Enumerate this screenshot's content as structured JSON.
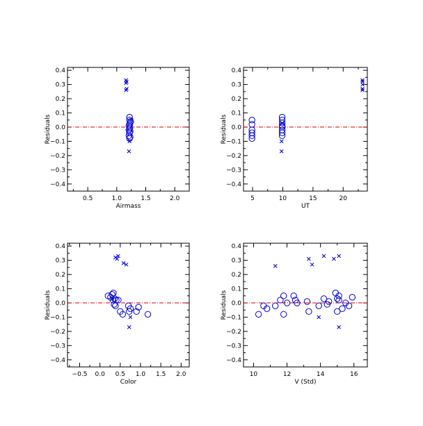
{
  "colors": {
    "marker": "#0000cc",
    "zero_line": "#dd0000",
    "axis": "#000000"
  },
  "chart_data": [
    {
      "type": "scatter",
      "xlabel": "Airmass",
      "ylabel": "Residuals",
      "xlim": [
        0.15,
        2.25
      ],
      "ylim": [
        -0.45,
        0.42
      ],
      "xticks": [
        0.5,
        1.0,
        1.5,
        2.0
      ],
      "xticklabels": [
        "0.5",
        "1.0",
        "1.5",
        "2.0"
      ],
      "yticks": [
        -0.4,
        -0.3,
        -0.2,
        -0.1,
        0.0,
        0.1,
        0.2,
        0.3,
        0.4
      ],
      "yticklabels": [
        "−0.4",
        "−0.3",
        "−0.2",
        "−0.1",
        "0.0",
        "0.1",
        "0.2",
        "0.3",
        "0.4"
      ],
      "reference_line_y": 0.0,
      "series": [
        {
          "marker": "circle",
          "points": [
            [
              1.22,
              0.07
            ],
            [
              1.22,
              0.05
            ],
            [
              1.23,
              0.03
            ],
            [
              1.22,
              0.02
            ],
            [
              1.23,
              0.0
            ],
            [
              1.22,
              -0.01
            ],
            [
              1.21,
              -0.02
            ],
            [
              1.23,
              -0.03
            ],
            [
              1.22,
              -0.04
            ],
            [
              1.21,
              -0.06
            ],
            [
              1.23,
              -0.07
            ],
            [
              1.22,
              -0.08
            ],
            [
              1.24,
              0.04
            ],
            [
              1.21,
              0.01
            ]
          ]
        },
        {
          "marker": "cross",
          "points": [
            [
              1.16,
              0.33
            ],
            [
              1.17,
              0.32
            ],
            [
              1.16,
              0.31
            ],
            [
              1.17,
              0.27
            ],
            [
              1.16,
              0.26
            ],
            [
              1.21,
              -0.17
            ],
            [
              1.22,
              -0.1
            ],
            [
              1.25,
              0.05
            ]
          ]
        }
      ]
    },
    {
      "type": "scatter",
      "xlabel": "UT",
      "ylabel": "Residuals",
      "xlim": [
        3.5,
        24
      ],
      "ylim": [
        -0.45,
        0.42
      ],
      "xticks": [
        5,
        10,
        15,
        20
      ],
      "xticklabels": [
        "5",
        "10",
        "15",
        "20"
      ],
      "yticks": [
        -0.4,
        -0.3,
        -0.2,
        -0.1,
        0.0,
        0.1,
        0.2,
        0.3,
        0.4
      ],
      "yticklabels": [
        "−0.4",
        "−0.3",
        "−0.2",
        "−0.1",
        "0.0",
        "0.1",
        "0.2",
        "0.3",
        "0.4"
      ],
      "reference_line_y": 0.0,
      "series": [
        {
          "marker": "circle",
          "points": [
            [
              4.9,
              0.05
            ],
            [
              4.9,
              0.02
            ],
            [
              4.9,
              -0.02
            ],
            [
              4.9,
              -0.04
            ],
            [
              4.9,
              -0.06
            ],
            [
              4.9,
              -0.08
            ],
            [
              9.9,
              0.07
            ],
            [
              9.9,
              0.05
            ],
            [
              9.9,
              0.03
            ],
            [
              9.9,
              0.01
            ],
            [
              9.9,
              0.0
            ],
            [
              9.9,
              -0.02
            ],
            [
              9.9,
              -0.04
            ],
            [
              9.9,
              -0.06
            ]
          ]
        },
        {
          "marker": "cross",
          "points": [
            [
              23.2,
              0.33
            ],
            [
              23.2,
              0.32
            ],
            [
              23.2,
              0.3
            ],
            [
              23.2,
              0.27
            ],
            [
              23.2,
              0.26
            ],
            [
              9.8,
              -0.17
            ],
            [
              9.8,
              -0.1
            ],
            [
              9.9,
              0.03
            ]
          ]
        }
      ]
    },
    {
      "type": "scatter",
      "xlabel": "Color",
      "ylabel": "Residuals",
      "xlim": [
        -0.8,
        2.2
      ],
      "ylim": [
        -0.45,
        0.42
      ],
      "xticks": [
        -0.5,
        0.0,
        0.5,
        1.0,
        1.5,
        2.0
      ],
      "xticklabels": [
        "−0.5",
        "0.0",
        "0.5",
        "1.0",
        "1.5",
        "2.0"
      ],
      "yticks": [
        -0.4,
        -0.3,
        -0.2,
        -0.1,
        0.0,
        0.1,
        0.2,
        0.3,
        0.4
      ],
      "yticklabels": [
        "−0.4",
        "−0.3",
        "−0.2",
        "−0.1",
        "0.0",
        "0.1",
        "0.2",
        "0.3",
        "0.4"
      ],
      "reference_line_y": 0.0,
      "series": [
        {
          "marker": "circle",
          "points": [
            [
              0.2,
              0.05
            ],
            [
              0.26,
              0.04
            ],
            [
              0.3,
              0.06
            ],
            [
              0.33,
              0.07
            ],
            [
              0.36,
              0.03
            ],
            [
              0.4,
              0.02
            ],
            [
              0.35,
              -0.01
            ],
            [
              0.38,
              -0.02
            ],
            [
              0.45,
              0.02
            ],
            [
              0.5,
              -0.06
            ],
            [
              0.56,
              -0.08
            ],
            [
              0.7,
              -0.02
            ],
            [
              0.75,
              -0.04
            ],
            [
              0.72,
              -0.06
            ],
            [
              0.9,
              -0.06
            ],
            [
              0.95,
              -0.03
            ],
            [
              1.18,
              -0.08
            ],
            [
              0.32,
              0.02
            ]
          ]
        },
        {
          "marker": "cross",
          "points": [
            [
              0.38,
              0.32
            ],
            [
              0.42,
              0.31
            ],
            [
              0.45,
              0.33
            ],
            [
              0.58,
              0.28
            ],
            [
              0.65,
              0.27
            ],
            [
              0.72,
              -0.17
            ],
            [
              0.75,
              -0.1
            ],
            [
              0.3,
              0.03
            ]
          ]
        }
      ]
    },
    {
      "type": "scatter",
      "xlabel": "V (Std)",
      "ylabel": "Residuals",
      "xlim": [
        9.4,
        16.8
      ],
      "ylim": [
        -0.45,
        0.42
      ],
      "xticks": [
        10,
        12,
        14,
        16
      ],
      "xticklabels": [
        "10",
        "12",
        "14",
        "16"
      ],
      "yticks": [
        -0.4,
        -0.3,
        -0.2,
        -0.1,
        0.0,
        0.1,
        0.2,
        0.3,
        0.4
      ],
      "yticklabels": [
        "−0.4",
        "−0.3",
        "−0.2",
        "−0.1",
        "0.0",
        "0.1",
        "0.2",
        "0.3",
        "0.4"
      ],
      "reference_line_y": 0.0,
      "series": [
        {
          "marker": "circle",
          "points": [
            [
              10.3,
              -0.08
            ],
            [
              10.6,
              -0.02
            ],
            [
              10.8,
              -0.04
            ],
            [
              11.3,
              -0.02
            ],
            [
              11.6,
              0.02
            ],
            [
              11.8,
              0.05
            ],
            [
              11.8,
              -0.08
            ],
            [
              12.0,
              0.0
            ],
            [
              12.4,
              0.05
            ],
            [
              12.5,
              0.02
            ],
            [
              12.6,
              0.0
            ],
            [
              13.2,
              0.01
            ],
            [
              13.3,
              -0.06
            ],
            [
              13.9,
              -0.02
            ],
            [
              14.2,
              0.03
            ],
            [
              14.4,
              -0.01
            ],
            [
              14.5,
              0.01
            ],
            [
              14.9,
              0.07
            ],
            [
              15.0,
              0.03
            ],
            [
              15.1,
              0.05
            ],
            [
              15.0,
              -0.06
            ],
            [
              15.3,
              -0.04
            ],
            [
              15.5,
              0.0
            ],
            [
              15.7,
              -0.02
            ],
            [
              15.9,
              0.04
            ],
            [
              15.1,
              0.02
            ]
          ]
        },
        {
          "marker": "cross",
          "points": [
            [
              11.3,
              0.26
            ],
            [
              13.3,
              0.31
            ],
            [
              13.5,
              0.27
            ],
            [
              14.2,
              0.33
            ],
            [
              14.8,
              0.31
            ],
            [
              15.1,
              0.33
            ],
            [
              13.9,
              -0.1
            ],
            [
              15.1,
              -0.17
            ]
          ]
        }
      ]
    }
  ]
}
